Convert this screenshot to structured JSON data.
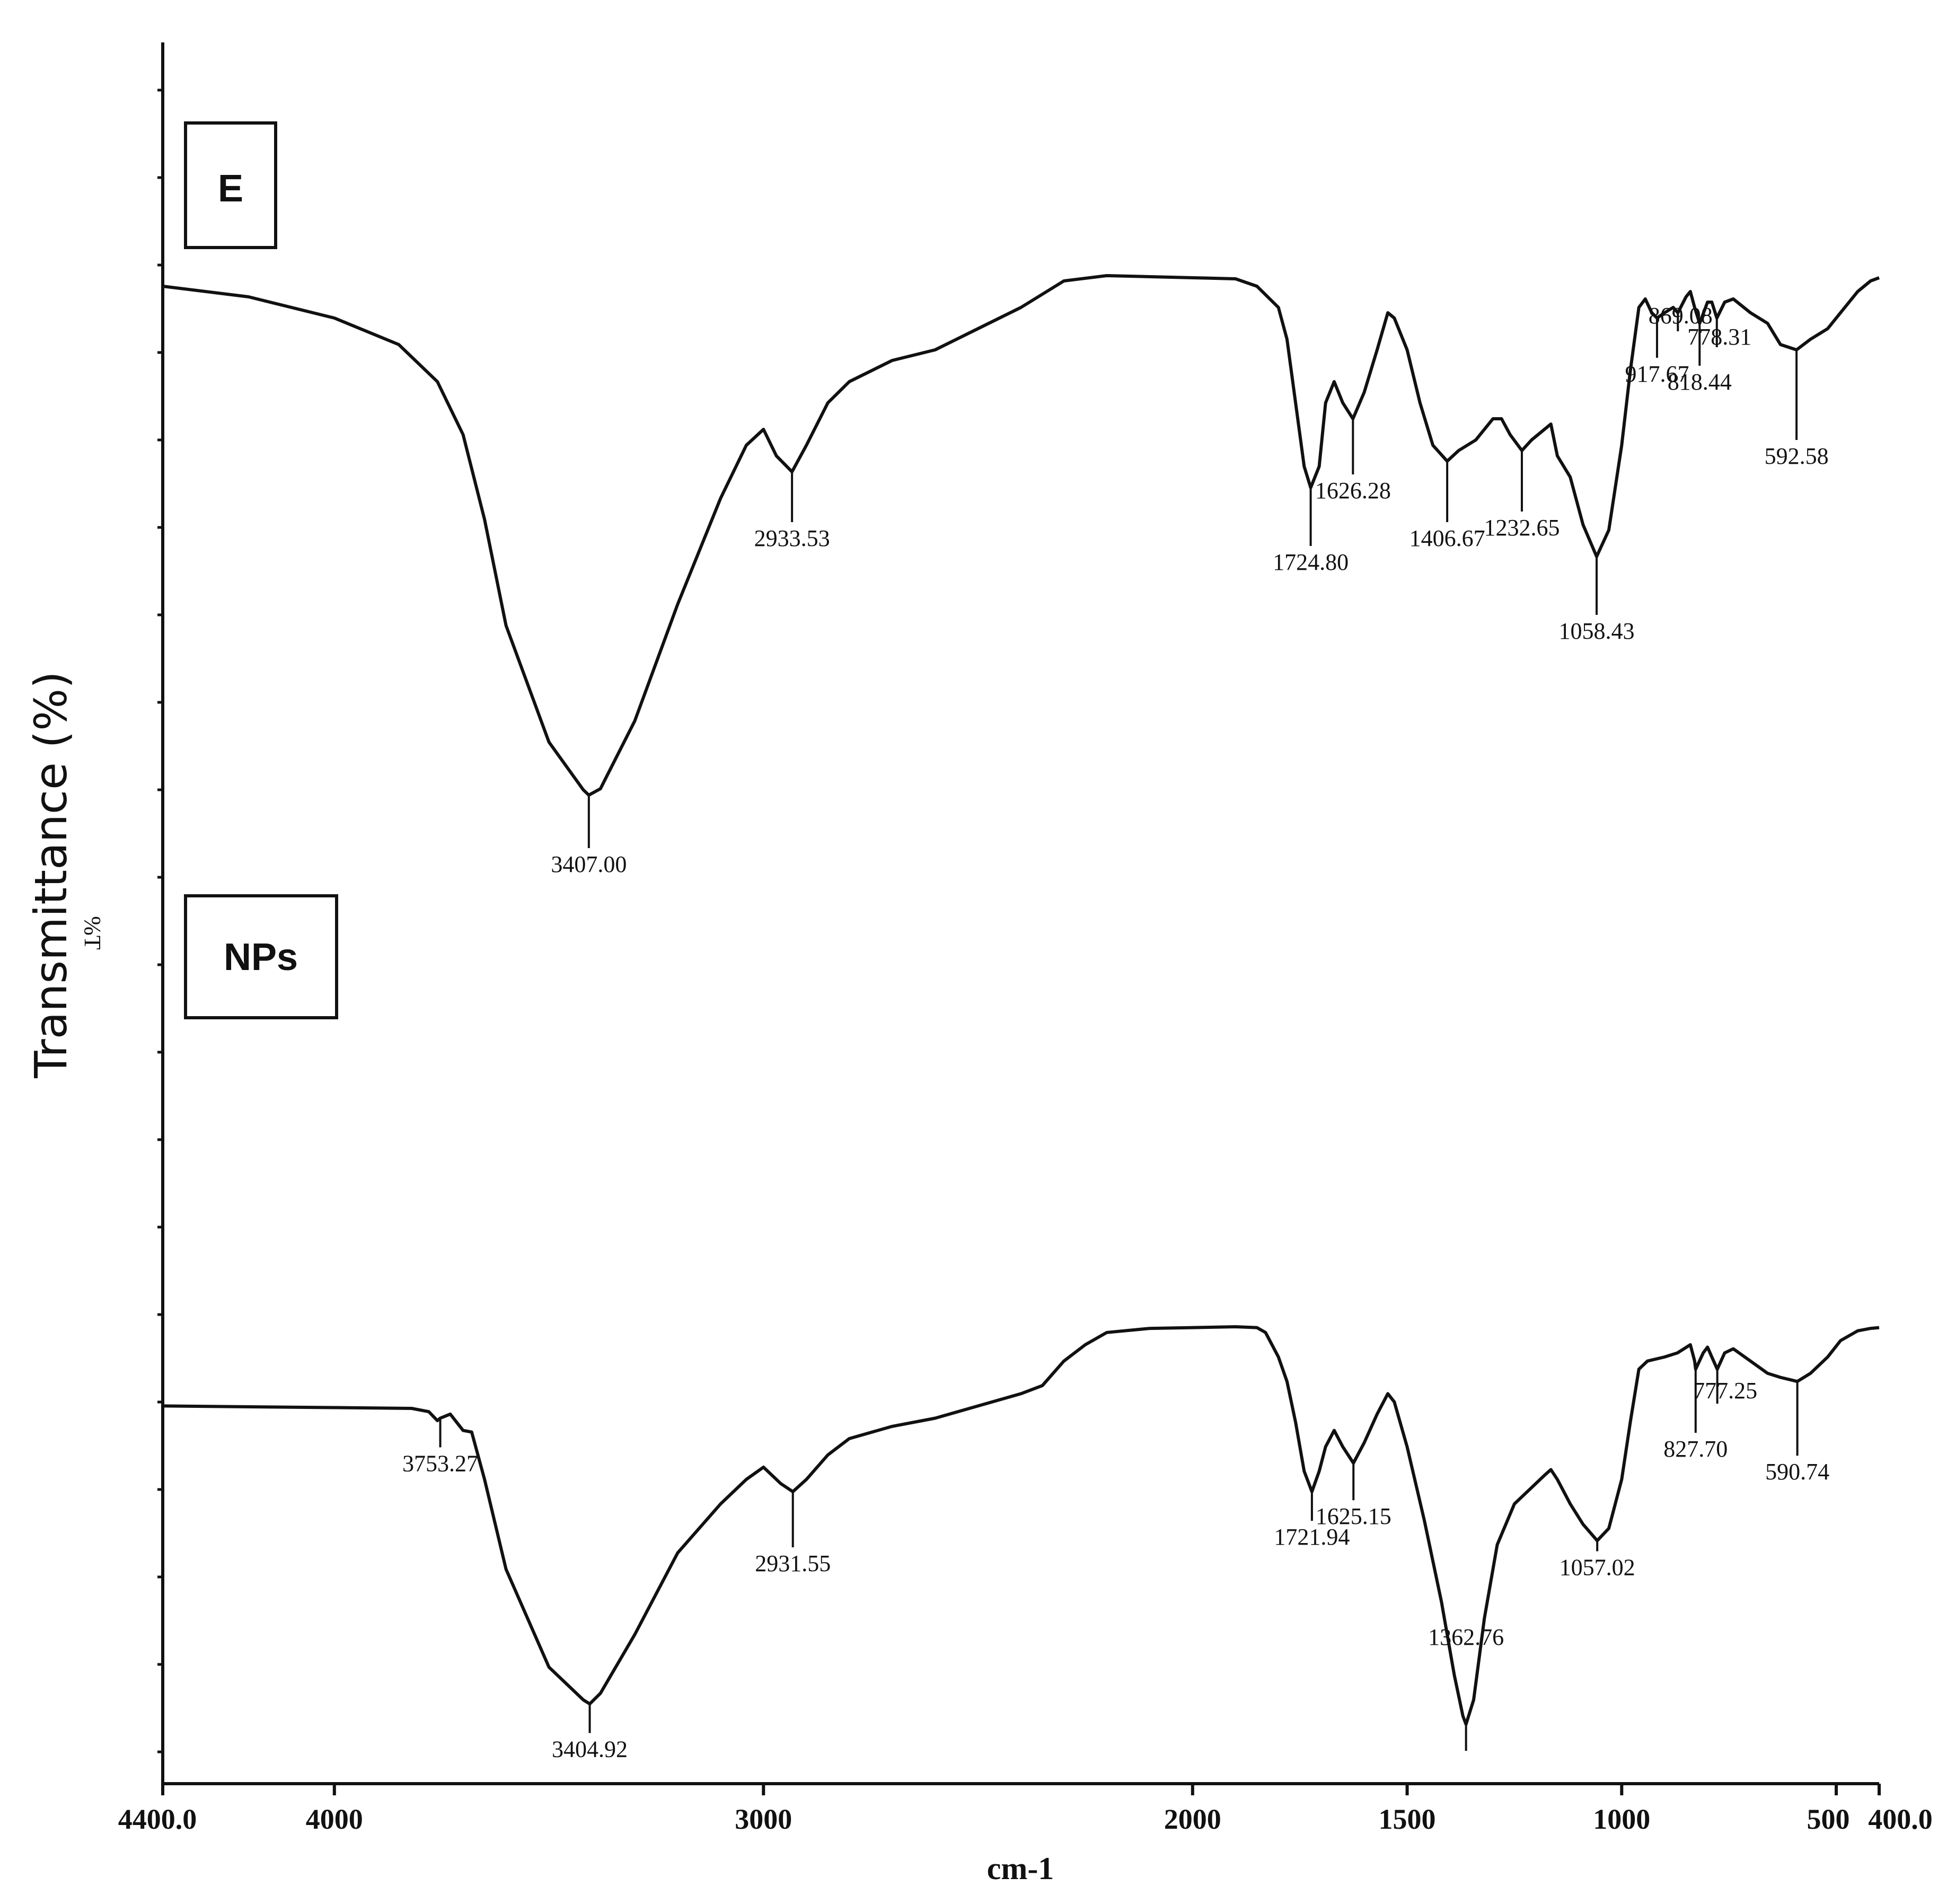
{
  "chart_data": {
    "type": "line",
    "ylabel": "Transmittance (%)",
    "ylabel_secondary": "%T",
    "xlabel": "cm-1",
    "xlim": [
      4400.0,
      400.0
    ],
    "x_ticks": [
      {
        "value": 4400,
        "label": "4400.0"
      },
      {
        "value": 4000,
        "label": "4000"
      },
      {
        "value": 3000,
        "label": "3000"
      },
      {
        "value": 2000,
        "label": "2000"
      },
      {
        "value": 1500,
        "label": "1500"
      },
      {
        "value": 1000,
        "label": "1000"
      },
      {
        "value": 500,
        "label": "500"
      },
      {
        "value": 400,
        "label": "400.0"
      }
    ],
    "ylim": [
      0,
      100
    ],
    "grid": false,
    "legend": "none",
    "colors": {
      "line": "#111111",
      "axis": "#111111",
      "background": "#ffffff"
    },
    "series": [
      {
        "name": "E",
        "points": [
          [
            4400,
            88
          ],
          [
            4200,
            87
          ],
          [
            4000,
            85
          ],
          [
            3850,
            82.5
          ],
          [
            3760,
            79
          ],
          [
            3700,
            74
          ],
          [
            3650,
            66
          ],
          [
            3600,
            56
          ],
          [
            3500,
            45
          ],
          [
            3420,
            40.5
          ],
          [
            3407,
            40
          ],
          [
            3380,
            40.6
          ],
          [
            3300,
            47
          ],
          [
            3200,
            58
          ],
          [
            3100,
            68
          ],
          [
            3040,
            73
          ],
          [
            3000,
            74.5
          ],
          [
            2970,
            72
          ],
          [
            2933.53,
            70.5
          ],
          [
            2900,
            73
          ],
          [
            2850,
            77
          ],
          [
            2800,
            79
          ],
          [
            2700,
            81
          ],
          [
            2600,
            82
          ],
          [
            2500,
            84
          ],
          [
            2400,
            86
          ],
          [
            2300,
            88.5
          ],
          [
            2200,
            89
          ],
          [
            2000,
            88.8
          ],
          [
            1900,
            88.7
          ],
          [
            1850,
            88
          ],
          [
            1800,
            86
          ],
          [
            1780,
            83
          ],
          [
            1760,
            77
          ],
          [
            1740,
            71
          ],
          [
            1724.8,
            69
          ],
          [
            1705,
            71
          ],
          [
            1690,
            77
          ],
          [
            1670,
            79
          ],
          [
            1650,
            77
          ],
          [
            1626.28,
            75.5
          ],
          [
            1600,
            78
          ],
          [
            1570,
            82
          ],
          [
            1545,
            85.5
          ],
          [
            1530,
            85
          ],
          [
            1500,
            82
          ],
          [
            1470,
            77
          ],
          [
            1440,
            73
          ],
          [
            1406.67,
            71.5
          ],
          [
            1380,
            72.5
          ],
          [
            1340,
            73.5
          ],
          [
            1300,
            75.5
          ],
          [
            1280,
            75.5
          ],
          [
            1260,
            74
          ],
          [
            1232.65,
            72.5
          ],
          [
            1210,
            73.5
          ],
          [
            1180,
            74.5
          ],
          [
            1165,
            75
          ],
          [
            1150,
            72
          ],
          [
            1120,
            70
          ],
          [
            1090,
            65.5
          ],
          [
            1058.43,
            62.5
          ],
          [
            1030,
            65
          ],
          [
            1000,
            73
          ],
          [
            980,
            80
          ],
          [
            960,
            86
          ],
          [
            945,
            86.8
          ],
          [
            930,
            85.5
          ],
          [
            917.67,
            85
          ],
          [
            900,
            85.5
          ],
          [
            880,
            86
          ],
          [
            869.08,
            85.5
          ],
          [
            850,
            87
          ],
          [
            840,
            87.5
          ],
          [
            830,
            86
          ],
          [
            818.44,
            84.5
          ],
          [
            800,
            86.5
          ],
          [
            790,
            86.5
          ],
          [
            778.31,
            85
          ],
          [
            760,
            86.5
          ],
          [
            740,
            86.8
          ],
          [
            700,
            85.5
          ],
          [
            660,
            84.5
          ],
          [
            630,
            82.5
          ],
          [
            592.58,
            82
          ],
          [
            560,
            83
          ],
          [
            520,
            84
          ],
          [
            490,
            85.5
          ],
          [
            450,
            87.5
          ],
          [
            420,
            88.5
          ],
          [
            400,
            88.8
          ]
        ]
      },
      {
        "name": "NPs",
        "points": [
          [
            4400,
            44
          ],
          [
            4000,
            43.8
          ],
          [
            3820,
            43.7
          ],
          [
            3780,
            43.3
          ],
          [
            3760,
            42.2
          ],
          [
            3753.27,
            42.5
          ],
          [
            3730,
            43
          ],
          [
            3700,
            41
          ],
          [
            3680,
            40.8
          ],
          [
            3650,
            35
          ],
          [
            3600,
            24
          ],
          [
            3500,
            12
          ],
          [
            3420,
            8
          ],
          [
            3404.92,
            7.5
          ],
          [
            3380,
            8.8
          ],
          [
            3300,
            16
          ],
          [
            3200,
            26
          ],
          [
            3100,
            32
          ],
          [
            3040,
            35
          ],
          [
            3000,
            36.5
          ],
          [
            2960,
            34.5
          ],
          [
            2931.55,
            33.5
          ],
          [
            2900,
            35
          ],
          [
            2850,
            38
          ],
          [
            2800,
            40
          ],
          [
            2700,
            41.5
          ],
          [
            2600,
            42.5
          ],
          [
            2500,
            44
          ],
          [
            2400,
            45.5
          ],
          [
            2350,
            46.5
          ],
          [
            2300,
            49.5
          ],
          [
            2250,
            51.5
          ],
          [
            2200,
            53
          ],
          [
            2100,
            53.5
          ],
          [
            2000,
            53.6
          ],
          [
            1900,
            53.7
          ],
          [
            1850,
            53.6
          ],
          [
            1830,
            53
          ],
          [
            1800,
            50
          ],
          [
            1780,
            47
          ],
          [
            1760,
            42
          ],
          [
            1740,
            36
          ],
          [
            1721.94,
            33.5
          ],
          [
            1705,
            36
          ],
          [
            1690,
            39
          ],
          [
            1670,
            41
          ],
          [
            1650,
            39
          ],
          [
            1625.15,
            37
          ],
          [
            1600,
            39.5
          ],
          [
            1570,
            43
          ],
          [
            1545,
            45.5
          ],
          [
            1530,
            44.5
          ],
          [
            1500,
            39
          ],
          [
            1460,
            30
          ],
          [
            1420,
            20
          ],
          [
            1390,
            11
          ],
          [
            1370,
            6
          ],
          [
            1362.76,
            5
          ],
          [
            1345,
            8
          ],
          [
            1320,
            18
          ],
          [
            1290,
            27
          ],
          [
            1250,
            32
          ],
          [
            1210,
            34
          ],
          [
            1180,
            35.5
          ],
          [
            1165,
            36.2
          ],
          [
            1150,
            35
          ],
          [
            1120,
            32
          ],
          [
            1090,
            29.5
          ],
          [
            1057.02,
            27.5
          ],
          [
            1030,
            29
          ],
          [
            1000,
            35
          ],
          [
            980,
            42
          ],
          [
            960,
            48.5
          ],
          [
            940,
            49.5
          ],
          [
            900,
            50
          ],
          [
            870,
            50.5
          ],
          [
            840,
            51.5
          ],
          [
            830,
            49.5
          ],
          [
            827.7,
            48.5
          ],
          [
            810,
            50.5
          ],
          [
            800,
            51.2
          ],
          [
            790,
            50
          ],
          [
            777.25,
            48.5
          ],
          [
            760,
            50.5
          ],
          [
            740,
            51
          ],
          [
            700,
            49.5
          ],
          [
            660,
            48
          ],
          [
            630,
            47.5
          ],
          [
            590.74,
            47
          ],
          [
            560,
            48
          ],
          [
            520,
            50
          ],
          [
            490,
            52
          ],
          [
            450,
            53.2
          ],
          [
            420,
            53.5
          ],
          [
            400,
            53.6
          ]
        ]
      }
    ],
    "peak_labels": [
      {
        "series": "E",
        "x": 3407.0,
        "label": "3407.00"
      },
      {
        "series": "E",
        "x": 2933.53,
        "label": "2933.53"
      },
      {
        "series": "E",
        "x": 1724.8,
        "label": "1724.80"
      },
      {
        "series": "E",
        "x": 1626.28,
        "label": "1626.28"
      },
      {
        "series": "E",
        "x": 1406.67,
        "label": "1406.67"
      },
      {
        "series": "E",
        "x": 1232.65,
        "label": "1232.65"
      },
      {
        "series": "E",
        "x": 1058.43,
        "label": "1058.43"
      },
      {
        "series": "E",
        "x": 917.67,
        "label": "917.67"
      },
      {
        "series": "E",
        "x": 869.08,
        "label": "869.08"
      },
      {
        "series": "E",
        "x": 818.44,
        "label": "818.44"
      },
      {
        "series": "E",
        "x": 778.31,
        "label": "778.31"
      },
      {
        "series": "E",
        "x": 592.58,
        "label": "592.58"
      },
      {
        "series": "NPs",
        "x": 3753.27,
        "label": "3753.27"
      },
      {
        "series": "NPs",
        "x": 3404.92,
        "label": "3404.92"
      },
      {
        "series": "NPs",
        "x": 2931.55,
        "label": "2931.55"
      },
      {
        "series": "NPs",
        "x": 1721.94,
        "label": "1721.94"
      },
      {
        "series": "NPs",
        "x": 1625.15,
        "label": "1625.15"
      },
      {
        "series": "NPs",
        "x": 1362.76,
        "label": "1362.76"
      },
      {
        "series": "NPs",
        "x": 1057.02,
        "label": "1057.02"
      },
      {
        "series": "NPs",
        "x": 827.7,
        "label": "827.70"
      },
      {
        "series": "NPs",
        "x": 777.25,
        "label": "777.25"
      },
      {
        "series": "NPs",
        "x": 590.74,
        "label": "590.74"
      }
    ]
  }
}
